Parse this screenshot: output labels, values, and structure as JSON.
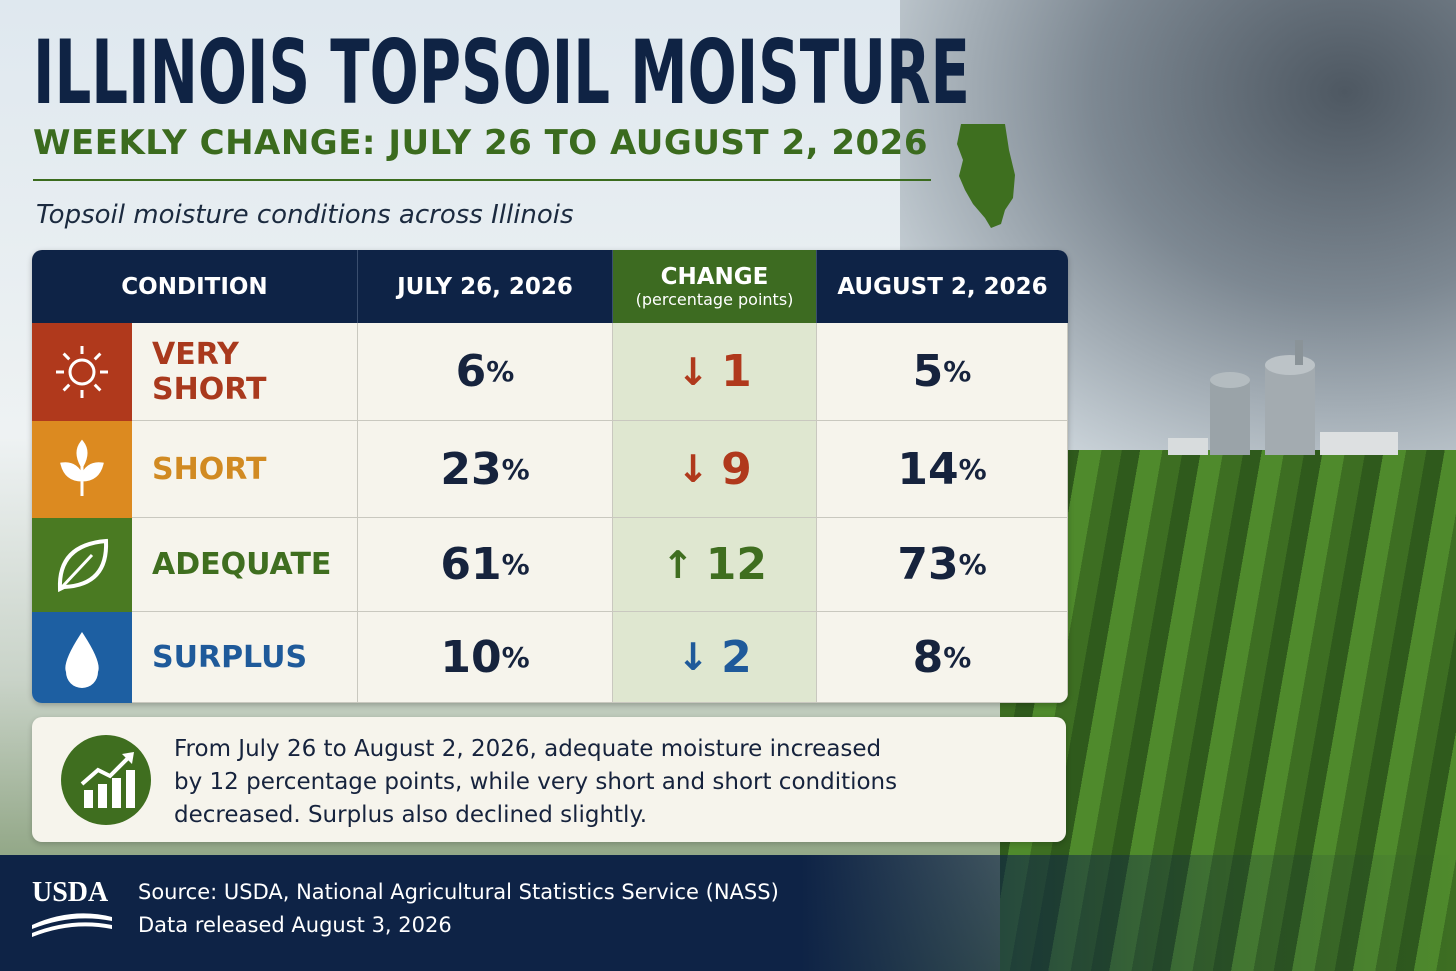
{
  "header": {
    "title": "ILLINOIS TOPSOIL MOISTURE",
    "subtitle": "WEEKLY CHANGE: JULY 26 TO AUGUST 2, 2026",
    "caption": "Topsoil moisture conditions across Illinois"
  },
  "table": {
    "columns": [
      "CONDITION",
      "JULY 26, 2026",
      "CHANGE",
      "AUGUST 2, 2026"
    ],
    "change_note": "(percentage points)",
    "rows": [
      {
        "condition": "VERY SHORT",
        "icon": "sun",
        "color": "#b0391c",
        "label_color": "#a9391d",
        "change_color": "#b0391c",
        "july": {
          "value": "6",
          "unit": "%"
        },
        "change": {
          "arrow": "↓",
          "amount": "1"
        },
        "august": {
          "value": "5",
          "unit": "%"
        }
      },
      {
        "condition": "SHORT",
        "icon": "sprout",
        "color": "#dc8a20",
        "label_color": "#d18a22",
        "change_color": "#b0391c",
        "july": {
          "value": "23",
          "unit": "%"
        },
        "change": {
          "arrow": "↓",
          "amount": "9"
        },
        "august": {
          "value": "14",
          "unit": "%"
        }
      },
      {
        "condition": "ADEQUATE",
        "icon": "leaf",
        "color": "#4a7a22",
        "label_color": "#3f6e1f",
        "change_color": "#3f6e1f",
        "july": {
          "value": "61",
          "unit": "%"
        },
        "change": {
          "arrow": "↑",
          "amount": "12"
        },
        "august": {
          "value": "73",
          "unit": "%"
        }
      },
      {
        "condition": "SURPLUS",
        "icon": "drop",
        "color": "#1d5fa2",
        "label_color": "#1f5a9a",
        "change_color": "#1f5a9a",
        "july": {
          "value": "10",
          "unit": "%"
        },
        "change": {
          "arrow": "↓",
          "amount": "2"
        },
        "august": {
          "value": "8",
          "unit": "%"
        }
      }
    ]
  },
  "summary": "From July 26 to August 2, 2026, adequate moisture increased by 12 percentage points, while very short and short conditions decreased. Surplus also declined slightly.",
  "footer": {
    "logo": "USDA",
    "source": "Source: USDA, National Agricultural Statistics Service (NASS)",
    "released": "Data released August 3, 2026"
  }
}
